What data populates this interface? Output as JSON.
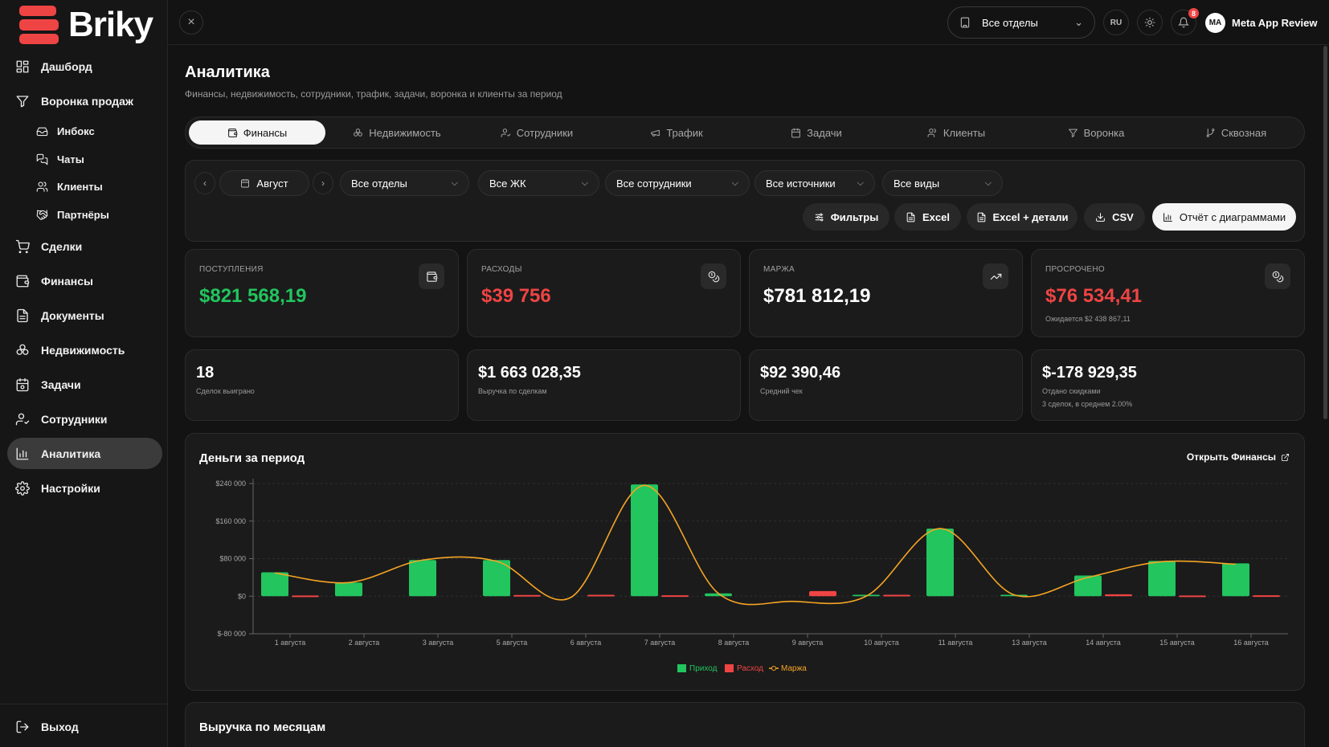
{
  "app": {
    "name": "Briky"
  },
  "sidebar": {
    "items": [
      {
        "label": "Дашборд",
        "icon": "dashboard-icon"
      },
      {
        "label": "Воронка продаж",
        "icon": "funnel-icon"
      },
      {
        "label": "Инбокс",
        "icon": "inbox-icon"
      },
      {
        "label": "Чаты",
        "icon": "chats-icon"
      },
      {
        "label": "Клиенты",
        "icon": "clients-icon"
      },
      {
        "label": "Партнёры",
        "icon": "partners-icon"
      },
      {
        "label": "Сделки",
        "icon": "cart-icon"
      },
      {
        "label": "Финансы",
        "icon": "wallet-icon"
      },
      {
        "label": "Документы",
        "icon": "document-icon"
      },
      {
        "label": "Недвижимость",
        "icon": "property-icon"
      },
      {
        "label": "Задачи",
        "icon": "calendar-icon"
      },
      {
        "label": "Сотрудники",
        "icon": "employees-icon"
      },
      {
        "label": "Аналитика",
        "icon": "analytics-icon"
      },
      {
        "label": "Настройки",
        "icon": "settings-icon"
      }
    ],
    "logout": "Выход"
  },
  "topbar": {
    "department": "Все отделы",
    "lang": "RU",
    "notifications": "8",
    "user_initials": "MA",
    "user_name": "Meta App Review"
  },
  "page": {
    "title": "Аналитика",
    "subtitle": "Финансы, недвижимость, сотрудники, трафик, задачи, воронка и клиенты за период"
  },
  "tabs": [
    "Финансы",
    "Недвижимость",
    "Сотрудники",
    "Трафик",
    "Задачи",
    "Клиенты",
    "Воронка",
    "Сквозная"
  ],
  "filters": {
    "month": "Август",
    "department": "Все отделы",
    "complex": "Все ЖК",
    "employees": "Все сотрудники",
    "sources": "Все источники",
    "types": "Все виды"
  },
  "actions": {
    "filters": "Фильтры",
    "excel": "Excel",
    "excel_details": "Excel + детали",
    "csv": "CSV",
    "report": "Отчёт с диаграммами"
  },
  "kpis": [
    {
      "label": "ПОСТУПЛЕНИЯ",
      "value": "$821 568,19",
      "color": "#22c55e",
      "note": ""
    },
    {
      "label": "РАСХОДЫ",
      "value": "$39 756",
      "color": "#ef4444",
      "note": ""
    },
    {
      "label": "МАРЖА",
      "value": "$781 812,19",
      "color": "#ffffff",
      "note": ""
    },
    {
      "label": "ПРОСРОЧЕНО",
      "value": "$76 534,41",
      "color": "#ef4444",
      "note": "Ожидается $2 438 867,11"
    }
  ],
  "stats": [
    {
      "value": "18",
      "label": "Сделок выиграно",
      "note": ""
    },
    {
      "value": "$1 663 028,35",
      "label": "Выручка по сделкам",
      "note": ""
    },
    {
      "value": "$92 390,46",
      "label": "Средний чек",
      "note": ""
    },
    {
      "value": "$-178 929,35",
      "label": "Отдано скидками",
      "note": "3 сделок, в среднем 2.00%"
    }
  ],
  "money_card": {
    "title": "Деньги за период",
    "link": "Открыть Финансы"
  },
  "monthly_card": {
    "title": "Выручка по месяцам"
  },
  "chart_data": {
    "type": "bar",
    "categories": [
      "1 августа",
      "2 августа",
      "3 августа",
      "5 августа",
      "6 августа",
      "7 августа",
      "8 августа",
      "9 августа",
      "10 августа",
      "11 августа",
      "13 августа",
      "14 августа",
      "15 августа",
      "16 августа"
    ],
    "series": [
      {
        "name": "Приход",
        "type": "bar",
        "color": "#22c55e",
        "values": [
          51000,
          29000,
          77000,
          77000,
          0,
          238000,
          6000,
          0,
          3000,
          144000,
          3000,
          44000,
          75000,
          70000
        ]
      },
      {
        "name": "Расход",
        "type": "bar",
        "color": "#ef4444",
        "values": [
          1500,
          0,
          0,
          2500,
          3000,
          2000,
          0,
          11000,
          3000,
          0,
          0,
          4000,
          1500,
          2000
        ]
      },
      {
        "name": "Маржа",
        "type": "line",
        "color": "#f5a524",
        "values": [
          49500,
          29000,
          77000,
          74500,
          -3000,
          236000,
          6000,
          -11000,
          0,
          144000,
          3000,
          40000,
          73500,
          68000
        ]
      }
    ],
    "yticks": [
      "$240 000",
      "$160 000",
      "$80 000",
      "$0",
      "$-80 000"
    ],
    "ylim": [
      -80000,
      240000
    ],
    "grid": true,
    "legend": "bottom"
  }
}
